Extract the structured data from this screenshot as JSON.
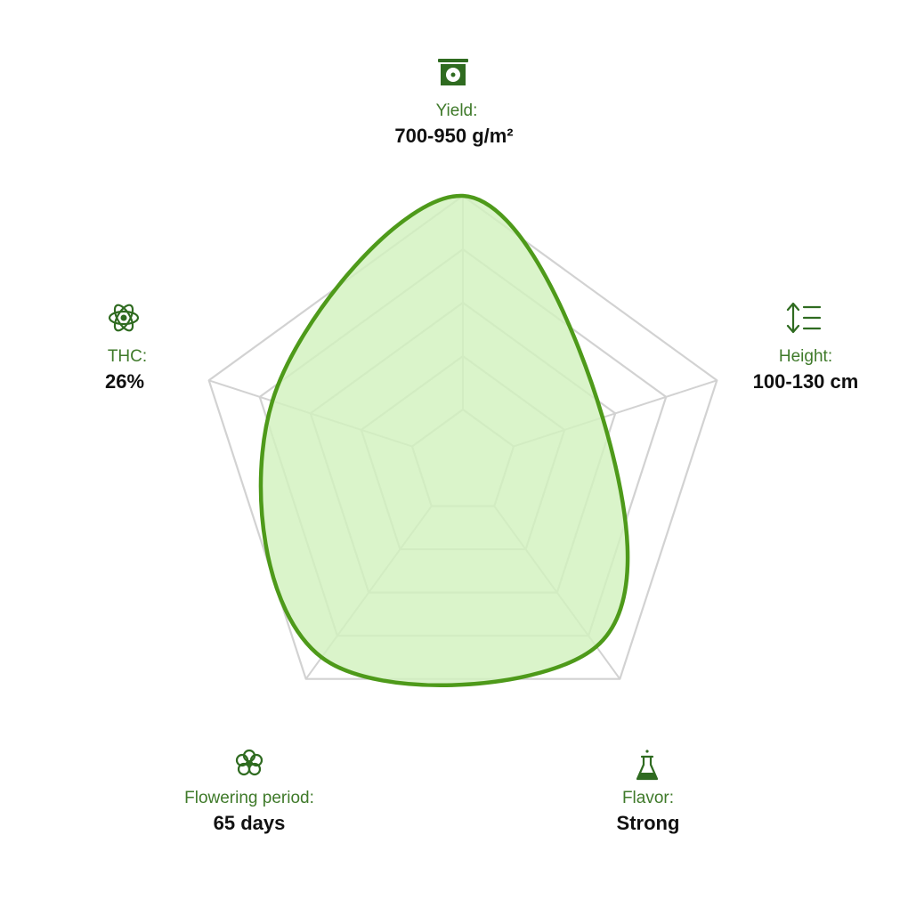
{
  "chart_data": {
    "type": "radar",
    "categories": [
      "Yield:",
      "Height:",
      "Flavor:",
      "Flowering period:",
      "THC:"
    ],
    "value_texts": [
      "700-950 g/m²",
      "100-130 cm",
      "Strong",
      "65 days",
      "26%"
    ],
    "values": [
      100,
      55,
      85,
      90,
      75
    ],
    "ylim": [
      0,
      100
    ],
    "yticks": [
      20,
      40,
      60,
      80,
      100
    ],
    "color": "#4e9a1a",
    "fill": "#d2f2be",
    "grid": true
  }
}
